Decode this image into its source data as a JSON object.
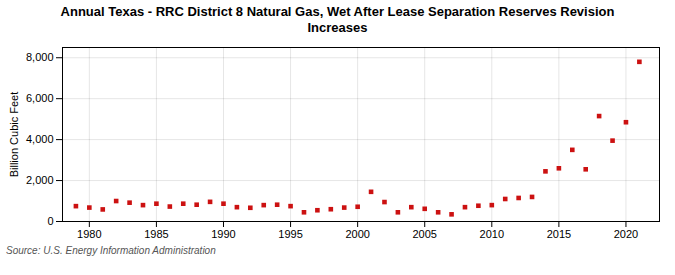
{
  "chart_data": {
    "type": "scatter",
    "title": "Annual Texas - RRC District 8 Natural Gas, Wet After Lease Separation Reserves Revision\nIncreases",
    "ylabel": "Billion Cubic Feet",
    "source": "Source: U.S. Energy Information Administration",
    "x": [
      1979,
      1980,
      1981,
      1982,
      1983,
      1984,
      1985,
      1986,
      1987,
      1988,
      1989,
      1990,
      1991,
      1992,
      1993,
      1994,
      1995,
      1996,
      1997,
      1998,
      1999,
      2000,
      2001,
      2002,
      2003,
      2004,
      2005,
      2006,
      2007,
      2008,
      2009,
      2010,
      2011,
      2012,
      2013,
      2014,
      2015,
      2016,
      2017,
      2018,
      2019,
      2020,
      2021
    ],
    "values": [
      750,
      680,
      590,
      1000,
      920,
      800,
      870,
      730,
      870,
      820,
      960,
      870,
      700,
      670,
      800,
      820,
      750,
      450,
      550,
      600,
      680,
      720,
      1450,
      950,
      450,
      700,
      620,
      450,
      350,
      700,
      770,
      800,
      1100,
      1150,
      1200,
      2450,
      2600,
      3500,
      2550,
      5150,
      3950,
      4850,
      7800
    ],
    "color": "#cc1111",
    "marker": "square",
    "xlim": [
      1978,
      2022.5
    ],
    "ylim": [
      0,
      8500
    ],
    "xticks": [
      1980,
      1985,
      1990,
      1995,
      2000,
      2005,
      2010,
      2015,
      2020
    ],
    "yticks": [
      0,
      {
        "value": 2000,
        "label": "2,000"
      },
      {
        "value": 4000,
        "label": "4,000"
      },
      {
        "value": 6000,
        "label": "6,000"
      },
      {
        "value": 8000,
        "label": "8,000"
      }
    ],
    "grid": true
  }
}
